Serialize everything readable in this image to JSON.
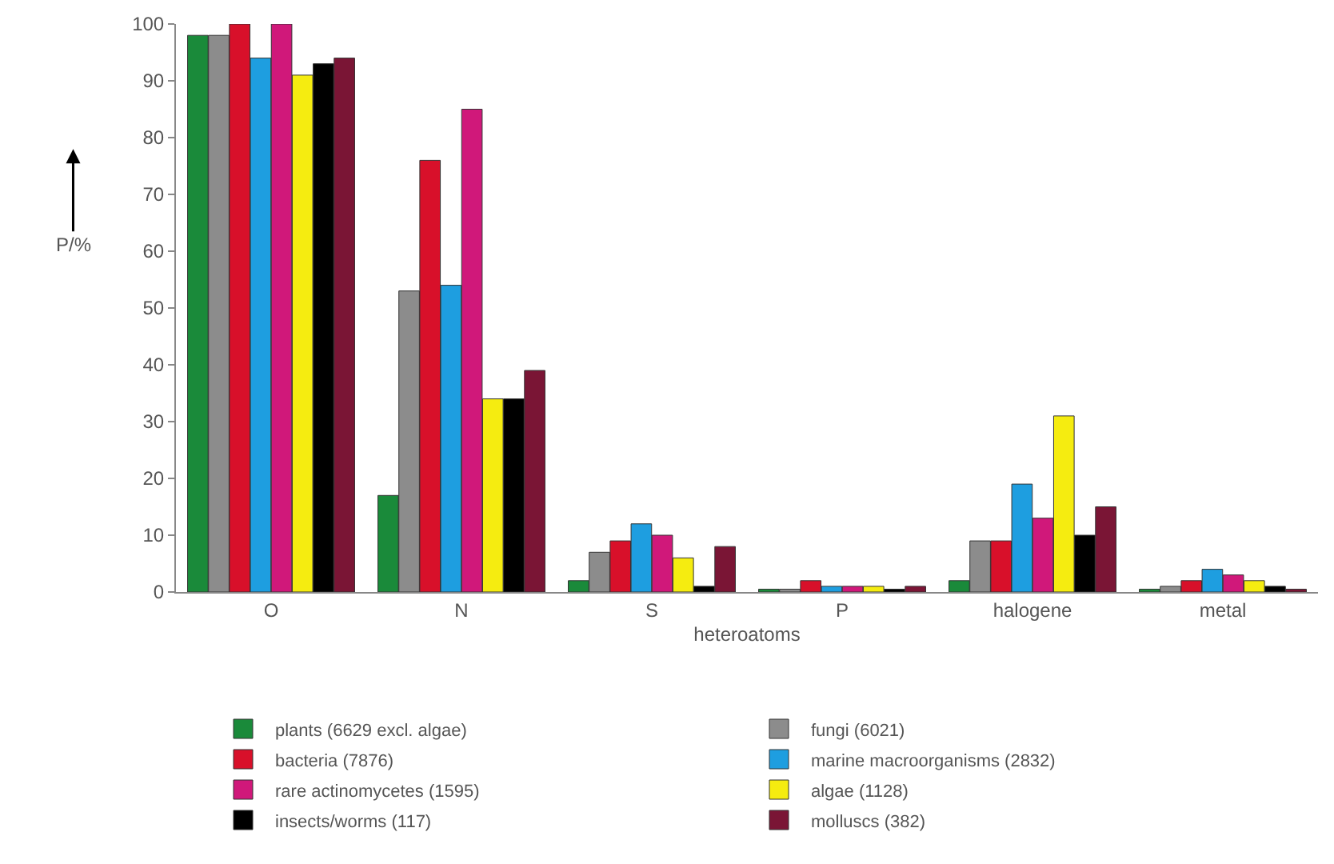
{
  "chart_data": {
    "type": "bar",
    "xlabel": "heteroatoms",
    "ylabel": "P/%",
    "categories": [
      "O",
      "N",
      "S",
      "P",
      "halogene",
      "metal"
    ],
    "series": [
      {
        "name": "plants (6629 excl. algae)",
        "color": "#1a8a3a",
        "values": [
          98,
          17,
          2,
          0.5,
          2,
          0.5
        ]
      },
      {
        "name": "fungi (6021)",
        "color": "#8c8c8c",
        "values": [
          98,
          53,
          7,
          0.5,
          9,
          1
        ]
      },
      {
        "name": "bacteria (7876)",
        "color": "#d8102a",
        "values": [
          100,
          76,
          9,
          2,
          9,
          2
        ]
      },
      {
        "name": "marine macroorganisms (2832)",
        "color": "#1e9ee0",
        "values": [
          94,
          54,
          12,
          1,
          19,
          4
        ]
      },
      {
        "name": "rare actinomycetes (1595)",
        "color": "#d0187a",
        "values": [
          100,
          85,
          10,
          1,
          13,
          3
        ]
      },
      {
        "name": "algae (1128)",
        "color": "#f5ec10",
        "values": [
          91,
          34,
          6,
          1,
          31,
          2
        ]
      },
      {
        "name": "insects/worms (117)",
        "color": "#000000",
        "values": [
          93,
          34,
          1,
          0.5,
          10,
          1
        ]
      },
      {
        "name": "molluscs (382)",
        "color": "#7a1535",
        "values": [
          94,
          39,
          8,
          1,
          15,
          0.5
        ]
      }
    ],
    "ylim": [
      0,
      100
    ],
    "yticks": [
      0,
      10,
      20,
      30,
      40,
      50,
      60,
      70,
      80,
      90,
      100
    ],
    "grid": false,
    "legend": "bottom"
  }
}
